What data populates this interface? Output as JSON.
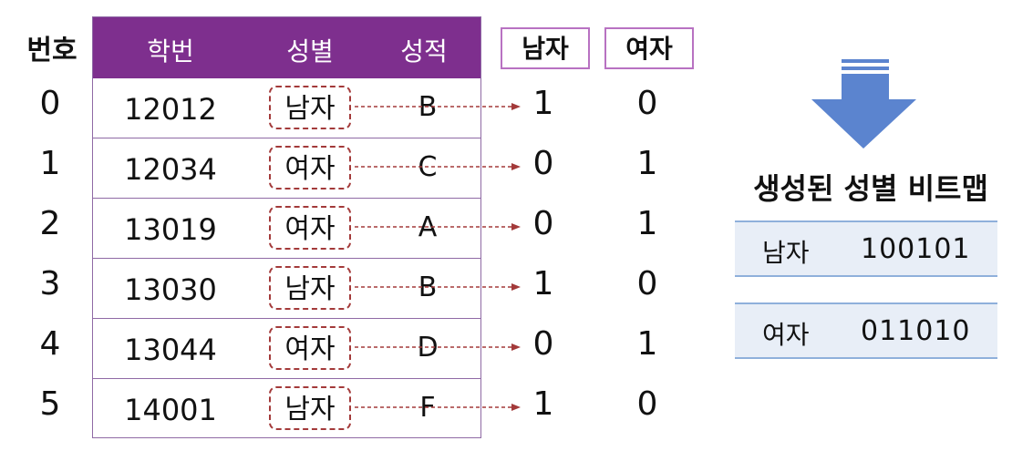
{
  "row_header": "번호",
  "table": {
    "headers": [
      "학번",
      "성별",
      "성적"
    ],
    "rows": [
      {
        "no": "0",
        "id": "12012",
        "gender": "남자",
        "grade": "B",
        "male": "1",
        "female": "0"
      },
      {
        "no": "1",
        "id": "12034",
        "gender": "여자",
        "grade": "C",
        "male": "0",
        "female": "1"
      },
      {
        "no": "2",
        "id": "13019",
        "gender": "여자",
        "grade": "A",
        "male": "0",
        "female": "1"
      },
      {
        "no": "3",
        "id": "13030",
        "gender": "남자",
        "grade": "B",
        "male": "1",
        "female": "0"
      },
      {
        "no": "4",
        "id": "13044",
        "gender": "여자",
        "grade": "D",
        "male": "0",
        "female": "1"
      },
      {
        "no": "5",
        "id": "14001",
        "gender": "남자",
        "grade": "F",
        "male": "1",
        "female": "0"
      }
    ]
  },
  "bitmap_columns": [
    "남자",
    "여자"
  ],
  "bitmap_title": "생성된 성별 비트맵",
  "bitmaps": [
    {
      "label": "남자",
      "bits": "100101"
    },
    {
      "label": "여자",
      "bits": "011010"
    }
  ],
  "colors": {
    "header_purple": "#7e2f8e",
    "dashed_red": "#a33a3a",
    "arrow_blue": "#5b84cf",
    "bitmap_bg": "#e8eef7"
  }
}
